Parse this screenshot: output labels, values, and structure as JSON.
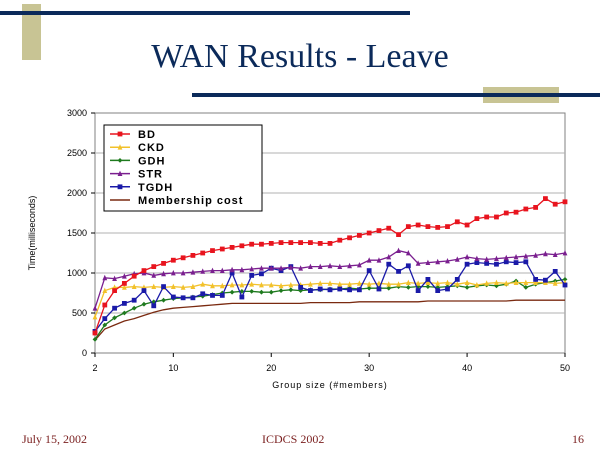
{
  "slide": {
    "title": "WAN Results - Leave",
    "footer_date": "July 15, 2002",
    "footer_venue": "ICDCS 2002",
    "footer_page": "16"
  },
  "colors": {
    "title": "#0b2a5a",
    "rule": "#0b2a5a",
    "accent_block": "#c8c494",
    "footer_text": "#7a1f1f"
  },
  "chart_data": {
    "type": "line",
    "title": "",
    "xlabel": "Group size (#members)",
    "ylabel": "Time(milliseconds)",
    "xlim": [
      2,
      50
    ],
    "ylim": [
      0,
      3000
    ],
    "xticks": [
      2,
      10,
      20,
      30,
      40,
      50
    ],
    "yticks": [
      0,
      500,
      1000,
      1500,
      2000,
      2500,
      3000
    ],
    "grid": true,
    "legend": "top-left",
    "x": [
      2,
      3,
      4,
      5,
      6,
      7,
      8,
      9,
      10,
      11,
      12,
      13,
      14,
      15,
      16,
      17,
      18,
      19,
      20,
      21,
      22,
      23,
      24,
      25,
      26,
      27,
      28,
      29,
      30,
      31,
      32,
      33,
      34,
      35,
      36,
      37,
      38,
      39,
      40,
      41,
      42,
      43,
      44,
      45,
      46,
      47,
      48,
      49,
      50
    ],
    "series": [
      {
        "name": "BD",
        "color": "#e8141e",
        "marker": "square",
        "values": [
          250,
          600,
          780,
          870,
          960,
          1030,
          1080,
          1120,
          1160,
          1190,
          1220,
          1250,
          1280,
          1300,
          1320,
          1340,
          1360,
          1360,
          1370,
          1380,
          1380,
          1380,
          1380,
          1370,
          1370,
          1410,
          1440,
          1470,
          1500,
          1530,
          1560,
          1480,
          1580,
          1600,
          1580,
          1570,
          1580,
          1640,
          1600,
          1680,
          1700,
          1700,
          1750,
          1760,
          1800,
          1820,
          1930,
          1860,
          1890
        ]
      },
      {
        "name": "CKD",
        "color": "#f2c12a",
        "marker": "triangle",
        "values": [
          450,
          780,
          820,
          820,
          830,
          820,
          830,
          820,
          830,
          820,
          830,
          860,
          840,
          840,
          850,
          850,
          860,
          850,
          850,
          840,
          850,
          850,
          860,
          870,
          870,
          860,
          860,
          870,
          860,
          870,
          860,
          860,
          880,
          870,
          880,
          870,
          880,
          860,
          880,
          850,
          870,
          880,
          870,
          880,
          880,
          880,
          880,
          870,
          880
        ]
      },
      {
        "name": "GDH",
        "color": "#1e7a1e",
        "marker": "diamond",
        "values": [
          170,
          350,
          440,
          500,
          560,
          610,
          640,
          660,
          680,
          690,
          700,
          710,
          730,
          750,
          760,
          770,
          770,
          760,
          760,
          780,
          790,
          780,
          790,
          790,
          800,
          800,
          810,
          800,
          810,
          810,
          810,
          830,
          820,
          830,
          830,
          820,
          830,
          840,
          820,
          840,
          850,
          840,
          860,
          900,
          820,
          860,
          880,
          900,
          920
        ]
      },
      {
        "name": "STR",
        "color": "#7a1f8f",
        "marker": "triangle",
        "values": [
          560,
          940,
          930,
          960,
          990,
          1000,
          970,
          990,
          1000,
          1000,
          1010,
          1020,
          1030,
          1030,
          1040,
          1040,
          1050,
          1060,
          1060,
          1060,
          1070,
          1060,
          1080,
          1080,
          1090,
          1080,
          1090,
          1100,
          1160,
          1160,
          1200,
          1280,
          1250,
          1120,
          1130,
          1140,
          1150,
          1170,
          1200,
          1180,
          1170,
          1180,
          1190,
          1200,
          1210,
          1220,
          1240,
          1230,
          1250
        ]
      },
      {
        "name": "TGDH",
        "color": "#1a1aa8",
        "marker": "square",
        "values": [
          270,
          430,
          560,
          620,
          660,
          780,
          590,
          830,
          700,
          690,
          690,
          740,
          720,
          720,
          1000,
          700,
          970,
          990,
          1060,
          1030,
          1080,
          820,
          780,
          800,
          790,
          800,
          790,
          790,
          1030,
          800,
          1110,
          1020,
          1090,
          780,
          920,
          780,
          800,
          920,
          1110,
          1130,
          1120,
          1110,
          1140,
          1130,
          1140,
          920,
          910,
          1020,
          850
        ]
      },
      {
        "name": "Membership cost",
        "color": "#7a2a10",
        "marker": "none",
        "values": [
          160,
          300,
          350,
          400,
          430,
          470,
          510,
          540,
          560,
          570,
          580,
          590,
          600,
          610,
          620,
          620,
          620,
          620,
          620,
          620,
          620,
          620,
          630,
          630,
          630,
          630,
          630,
          640,
          640,
          640,
          640,
          640,
          640,
          640,
          650,
          650,
          650,
          650,
          650,
          650,
          650,
          650,
          650,
          660,
          660,
          660,
          660,
          660,
          660
        ]
      }
    ]
  }
}
